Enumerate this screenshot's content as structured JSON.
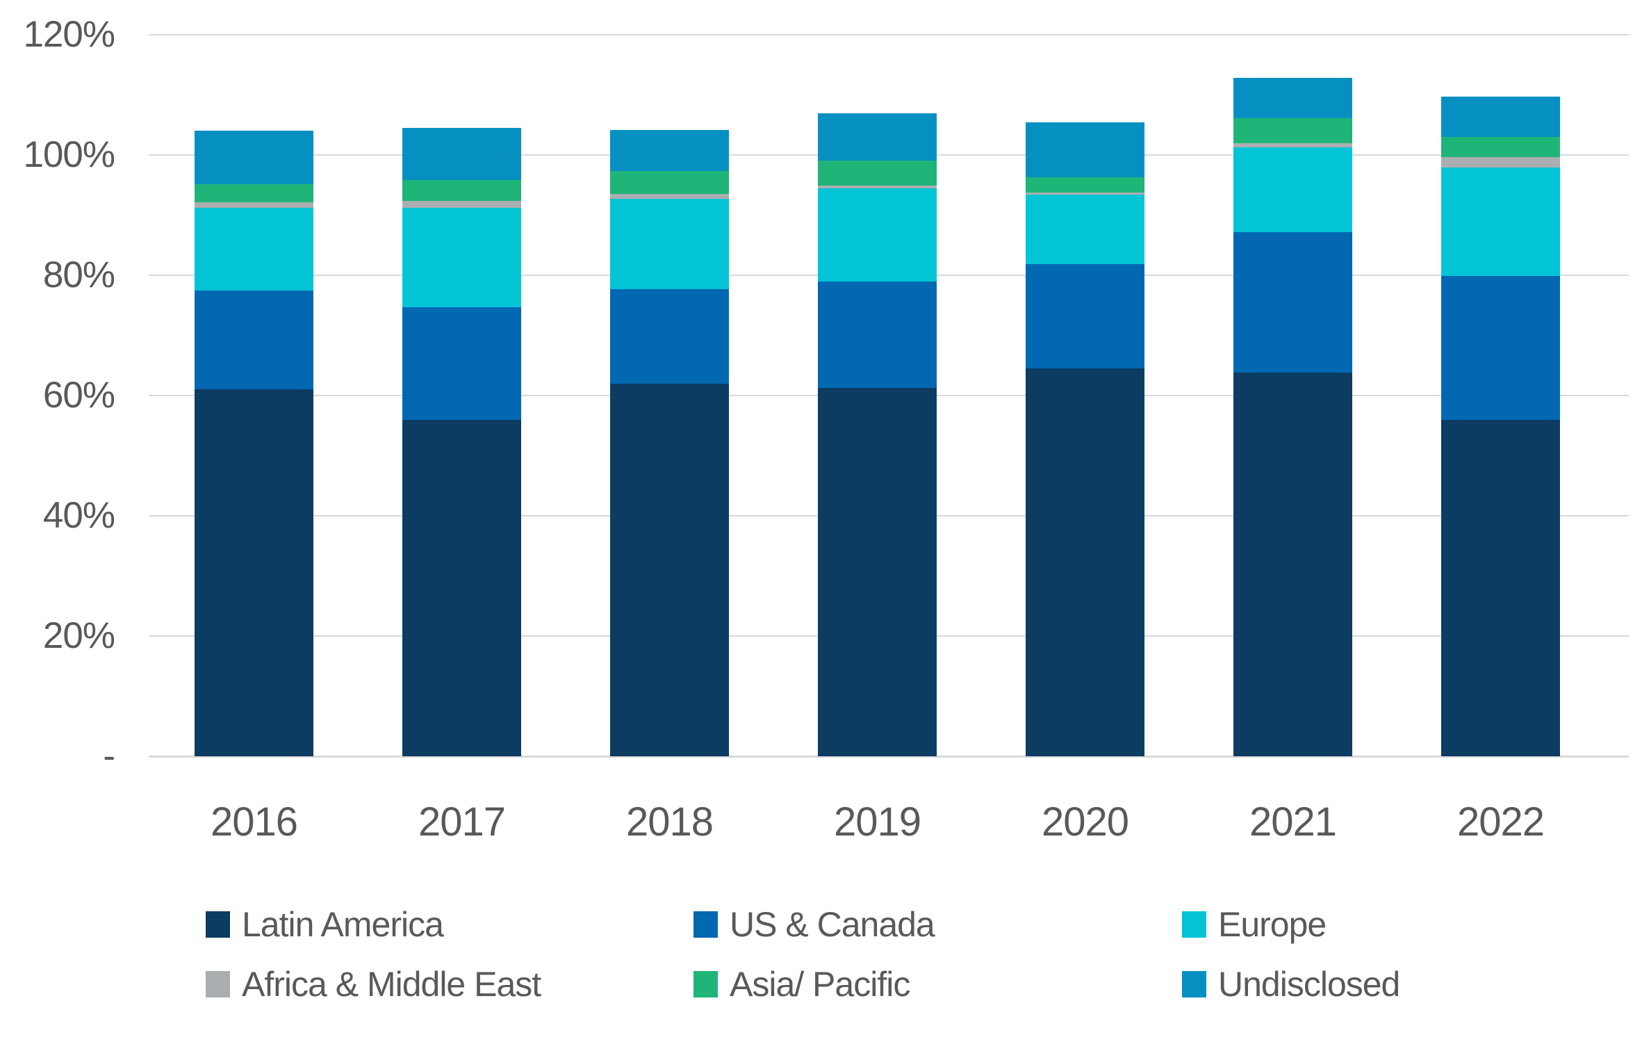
{
  "chart_data": {
    "type": "bar",
    "stacked": true,
    "title": "",
    "xlabel": "",
    "ylabel": "",
    "categories": [
      "2016",
      "2017",
      "2018",
      "2019",
      "2020",
      "2021",
      "2022"
    ],
    "series": [
      {
        "name": "Latin America",
        "color": "#0d3c63",
        "values": [
          61.0,
          56.0,
          62.0,
          61.3,
          64.5,
          63.8,
          56.0
        ]
      },
      {
        "name": "US & Canada",
        "color": "#0268b2",
        "values": [
          16.5,
          18.7,
          15.7,
          17.7,
          17.3,
          23.4,
          23.9
        ]
      },
      {
        "name": "Europe",
        "color": "#02c4d4",
        "values": [
          13.7,
          16.5,
          15.0,
          15.5,
          11.6,
          14.1,
          18.0
        ]
      },
      {
        "name": "Africa & Middle East",
        "color": "#abaeb0",
        "values": [
          0.9,
          1.2,
          0.8,
          0.4,
          0.4,
          0.7,
          1.8
        ]
      },
      {
        "name": "Asia/ Pacific",
        "color": "#1fb478",
        "values": [
          3.0,
          3.4,
          3.8,
          4.2,
          2.5,
          4.1,
          3.3
        ]
      },
      {
        "name": "Undisclosed",
        "color": "#0590c1",
        "values": [
          9.0,
          8.7,
          6.9,
          7.8,
          9.1,
          6.7,
          6.7
        ]
      }
    ],
    "stack_totals": [
      104.1,
      104.5,
      104.2,
      106.9,
      105.4,
      112.8,
      109.7
    ],
    "ylim": [
      0,
      120
    ],
    "grid": true,
    "yticks": [
      {
        "value": 120,
        "label": "120%"
      },
      {
        "value": 100,
        "label": "100%"
      },
      {
        "value": 80,
        "label": "80%"
      },
      {
        "value": 60,
        "label": "60%"
      },
      {
        "value": 40,
        "label": "40%"
      },
      {
        "value": 20,
        "label": "20%"
      },
      {
        "value": 0,
        "label": "-"
      }
    ],
    "legend_position": "bottom",
    "legend_rows": 2,
    "legend_columns": 3
  },
  "styles": {
    "background": "#ffffff",
    "grid_color": "#d9d9d9",
    "axis_text_color": "#595959"
  }
}
